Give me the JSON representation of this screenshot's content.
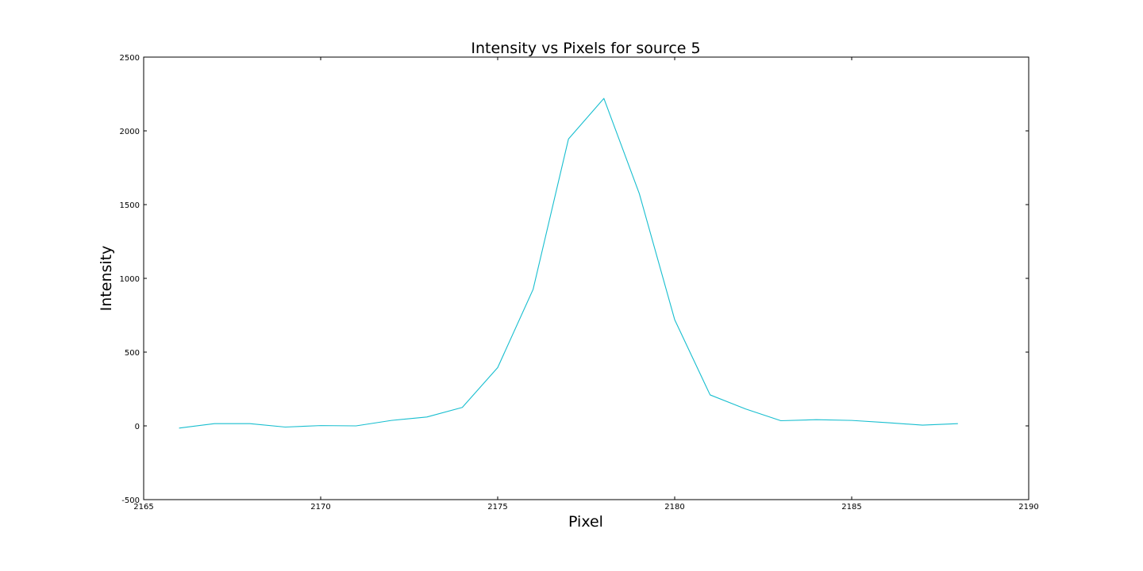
{
  "chart_data": {
    "type": "line",
    "title": "Intensity vs Pixels for source 5",
    "xlabel": "Pixel",
    "ylabel": "Intensity",
    "xlim": [
      2165,
      2190
    ],
    "ylim": [
      -500,
      2500
    ],
    "xticks": [
      "2165",
      "2170",
      "2175",
      "2180",
      "2185",
      "2190"
    ],
    "yticks": [
      "-500",
      "0",
      "500",
      "1000",
      "1500",
      "2000",
      "2500"
    ],
    "grid": false,
    "series": [
      {
        "color": "#17becf",
        "x": [
          2166,
          2167,
          2168,
          2169,
          2170,
          2171,
          2172,
          2173,
          2174,
          2175,
          2176,
          2177,
          2178,
          2179,
          2180,
          2181,
          2182,
          2183,
          2184,
          2185,
          2186,
          2187,
          2188
        ],
        "y": [
          -15,
          15,
          15,
          -8,
          2,
          0,
          37,
          60,
          125,
          395,
          925,
          1945,
          2220,
          1575,
          720,
          210,
          115,
          35,
          42,
          37,
          22,
          5,
          15
        ]
      }
    ]
  }
}
